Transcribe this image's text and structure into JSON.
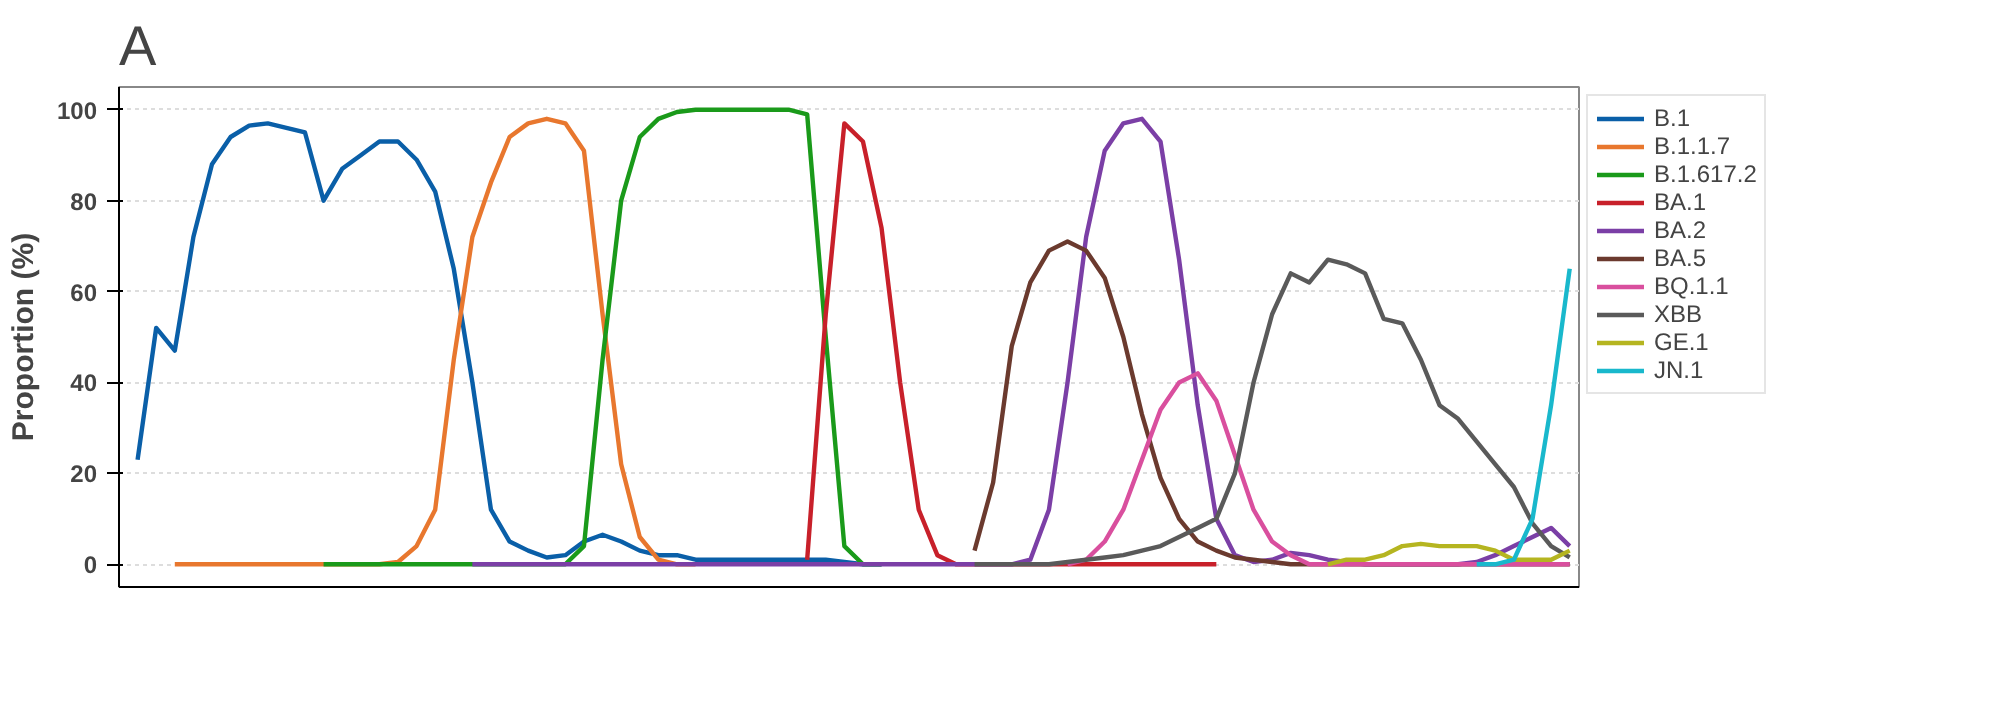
{
  "chart_data": {
    "type": "line",
    "title": "A",
    "ylabel": "Proportion (%)",
    "categories": [
      null,
      null,
      null,
      null,
      null,
      null,
      null,
      null,
      null,
      null,
      null,
      null,
      null,
      null,
      null,
      null,
      null,
      null,
      null,
      null,
      null,
      null,
      null,
      null,
      null,
      null,
      null,
      null,
      null,
      null,
      null,
      null,
      null,
      null,
      null,
      null,
      null,
      null,
      null,
      null,
      null,
      null,
      null,
      null,
      null,
      null,
      null,
      null,
      null,
      null,
      null,
      null,
      null,
      null,
      null,
      null,
      null,
      null,
      null,
      null,
      null,
      null,
      null,
      null,
      null,
      null,
      null,
      null,
      null,
      null,
      null,
      null,
      null,
      null,
      null,
      null,
      null,
      null
    ],
    "ylim": [
      -5,
      105
    ],
    "yticks": [
      0,
      20,
      40,
      60,
      80,
      100
    ],
    "grid": "y",
    "legend": "right",
    "line_style": "solid",
    "marker": "none",
    "series": [
      {
        "name": "B.1",
        "color": "#0a5fa8",
        "values": [
          23,
          52,
          47,
          72,
          88,
          94,
          96.5,
          97,
          96,
          95,
          80,
          87,
          90,
          93,
          93,
          89,
          82,
          65,
          40,
          12,
          5,
          3,
          1.5,
          2,
          5,
          6.5,
          5,
          3,
          2,
          2,
          1,
          1,
          1,
          1,
          1,
          1,
          1,
          1,
          0.5,
          0,
          0,
          null,
          null,
          null,
          null,
          null,
          null,
          null,
          null,
          null,
          null,
          null,
          null,
          null,
          null,
          null,
          null,
          null,
          null,
          null,
          null,
          null,
          null,
          null,
          null,
          null,
          null,
          null,
          null,
          null,
          null,
          null,
          null,
          null,
          null,
          null,
          null,
          null
        ]
      },
      {
        "name": "B.1.1.7",
        "color": "#e8772e",
        "values": [
          null,
          null,
          0,
          0,
          0,
          0,
          0,
          0,
          0,
          0,
          0,
          0,
          0,
          0,
          0.5,
          4,
          12,
          45,
          72,
          84,
          94,
          97,
          98,
          97,
          91,
          55,
          22,
          6,
          1,
          0,
          0,
          null,
          null,
          null,
          null,
          null,
          null,
          null,
          null,
          null,
          null,
          null,
          null,
          null,
          null,
          null,
          null,
          null,
          null,
          null,
          null,
          null,
          null,
          null,
          null,
          null,
          null,
          null,
          null,
          null,
          null,
          null,
          null,
          null,
          null,
          null,
          null,
          null,
          null,
          null,
          null,
          null,
          null,
          null,
          null,
          null,
          null,
          null
        ]
      },
      {
        "name": "B.1.617.2",
        "color": "#1a9a1a",
        "values": [
          null,
          null,
          null,
          null,
          null,
          null,
          null,
          null,
          null,
          null,
          0,
          0,
          0,
          0,
          0,
          0,
          0,
          0,
          0,
          0,
          0,
          0,
          0,
          0,
          4,
          45,
          80,
          94,
          98,
          99.5,
          100,
          100,
          100,
          100,
          100,
          100,
          99,
          50,
          4,
          0,
          0,
          null,
          null,
          null,
          null,
          null,
          null,
          null,
          null,
          null,
          null,
          null,
          null,
          null,
          null,
          null,
          null,
          null,
          null,
          null,
          null,
          null,
          null,
          null,
          null,
          null,
          null,
          null,
          null,
          null,
          null,
          null,
          null,
          null,
          null,
          null,
          null,
          null
        ]
      },
      {
        "name": "BA.1",
        "color": "#c8202a",
        "values": [
          null,
          null,
          null,
          null,
          null,
          null,
          null,
          null,
          null,
          null,
          null,
          null,
          null,
          null,
          null,
          null,
          null,
          null,
          null,
          null,
          null,
          null,
          null,
          null,
          null,
          null,
          null,
          null,
          null,
          null,
          null,
          null,
          null,
          null,
          null,
          null,
          1,
          55,
          97,
          93,
          74,
          40,
          12,
          2,
          0,
          0,
          0,
          0,
          0,
          0,
          0,
          0,
          0,
          0,
          0,
          0,
          0,
          0,
          0,
          null,
          null,
          null,
          null,
          null,
          null,
          null,
          null,
          null,
          null,
          null,
          null,
          null,
          null,
          null,
          null,
          null,
          null,
          null
        ]
      },
      {
        "name": "BA.2",
        "color": "#7b3fa6",
        "values": [
          null,
          null,
          null,
          null,
          null,
          null,
          null,
          null,
          null,
          null,
          null,
          null,
          null,
          null,
          null,
          null,
          null,
          null,
          0,
          0,
          0,
          0,
          0,
          0,
          0,
          0,
          0,
          0,
          0,
          0,
          0,
          0,
          0,
          0,
          0,
          0,
          0,
          0,
          0,
          0,
          0,
          0,
          0,
          0,
          0,
          0,
          0,
          0,
          1,
          12,
          40,
          72,
          91,
          97,
          98,
          93,
          67,
          35,
          10,
          2,
          0.5,
          1,
          2.5,
          2,
          1,
          0.5,
          0,
          0,
          0,
          0,
          0,
          0,
          0.5,
          2,
          4,
          6,
          8,
          4
        ]
      },
      {
        "name": "BA.5",
        "color": "#6b3a2e",
        "values": [
          null,
          null,
          null,
          null,
          null,
          null,
          null,
          null,
          null,
          null,
          null,
          null,
          null,
          null,
          null,
          null,
          null,
          null,
          null,
          null,
          null,
          null,
          null,
          null,
          null,
          null,
          null,
          null,
          null,
          null,
          null,
          null,
          null,
          null,
          null,
          null,
          null,
          null,
          null,
          null,
          null,
          null,
          null,
          null,
          null,
          3,
          18,
          48,
          62,
          69,
          71,
          69,
          63,
          50,
          33,
          19,
          10,
          5,
          3,
          1.5,
          1,
          0.5,
          0,
          0,
          0,
          0,
          0,
          0,
          0,
          0,
          0,
          0,
          0,
          0,
          0,
          0,
          0,
          0
        ]
      },
      {
        "name": "BQ.1.1",
        "color": "#d94f9e",
        "values": [
          null,
          null,
          null,
          null,
          null,
          null,
          null,
          null,
          null,
          null,
          null,
          null,
          null,
          null,
          null,
          null,
          null,
          null,
          null,
          null,
          null,
          null,
          null,
          null,
          null,
          null,
          null,
          null,
          null,
          null,
          null,
          null,
          null,
          null,
          null,
          null,
          null,
          null,
          null,
          null,
          null,
          null,
          null,
          null,
          null,
          null,
          null,
          null,
          null,
          null,
          0,
          1,
          5,
          12,
          23,
          34,
          40,
          42,
          36,
          24,
          12,
          5,
          2,
          0,
          0,
          0,
          0,
          0,
          0,
          0,
          0,
          0,
          0,
          0,
          0,
          0,
          0,
          0
        ]
      },
      {
        "name": "XBB",
        "color": "#5a5a5a",
        "values": [
          null,
          null,
          null,
          null,
          null,
          null,
          null,
          null,
          null,
          null,
          null,
          null,
          null,
          null,
          null,
          null,
          null,
          null,
          null,
          null,
          null,
          null,
          null,
          null,
          null,
          null,
          null,
          null,
          null,
          null,
          null,
          null,
          null,
          null,
          null,
          null,
          null,
          null,
          null,
          null,
          null,
          null,
          null,
          null,
          null,
          0,
          0,
          0,
          0,
          0,
          0.5,
          1,
          1.5,
          2,
          3,
          4,
          6,
          8,
          10,
          20,
          40,
          55,
          64,
          62,
          67,
          66,
          64,
          54,
          53,
          45,
          35,
          32,
          27,
          22,
          17,
          9,
          4,
          1.5
        ]
      },
      {
        "name": "GE.1",
        "color": "#b5b520",
        "values": [
          null,
          null,
          null,
          null,
          null,
          null,
          null,
          null,
          null,
          null,
          null,
          null,
          null,
          null,
          null,
          null,
          null,
          null,
          null,
          null,
          null,
          null,
          null,
          null,
          null,
          null,
          null,
          null,
          null,
          null,
          null,
          null,
          null,
          null,
          null,
          null,
          null,
          null,
          null,
          null,
          null,
          null,
          null,
          null,
          null,
          null,
          null,
          null,
          null,
          null,
          null,
          null,
          null,
          null,
          null,
          null,
          null,
          null,
          null,
          null,
          null,
          null,
          null,
          null,
          0,
          1,
          1,
          2,
          4,
          4.5,
          4,
          4,
          4,
          3,
          1,
          1,
          1,
          3
        ]
      },
      {
        "name": "JN.1",
        "color": "#19b8cc",
        "values": [
          null,
          null,
          null,
          null,
          null,
          null,
          null,
          null,
          null,
          null,
          null,
          null,
          null,
          null,
          null,
          null,
          null,
          null,
          null,
          null,
          null,
          null,
          null,
          null,
          null,
          null,
          null,
          null,
          null,
          null,
          null,
          null,
          null,
          null,
          null,
          null,
          null,
          null,
          null,
          null,
          null,
          null,
          null,
          null,
          null,
          null,
          null,
          null,
          null,
          null,
          null,
          null,
          null,
          null,
          null,
          null,
          null,
          null,
          null,
          null,
          null,
          null,
          null,
          null,
          null,
          null,
          null,
          null,
          null,
          null,
          null,
          null,
          0,
          0,
          1,
          10,
          35,
          65
        ]
      }
    ]
  }
}
